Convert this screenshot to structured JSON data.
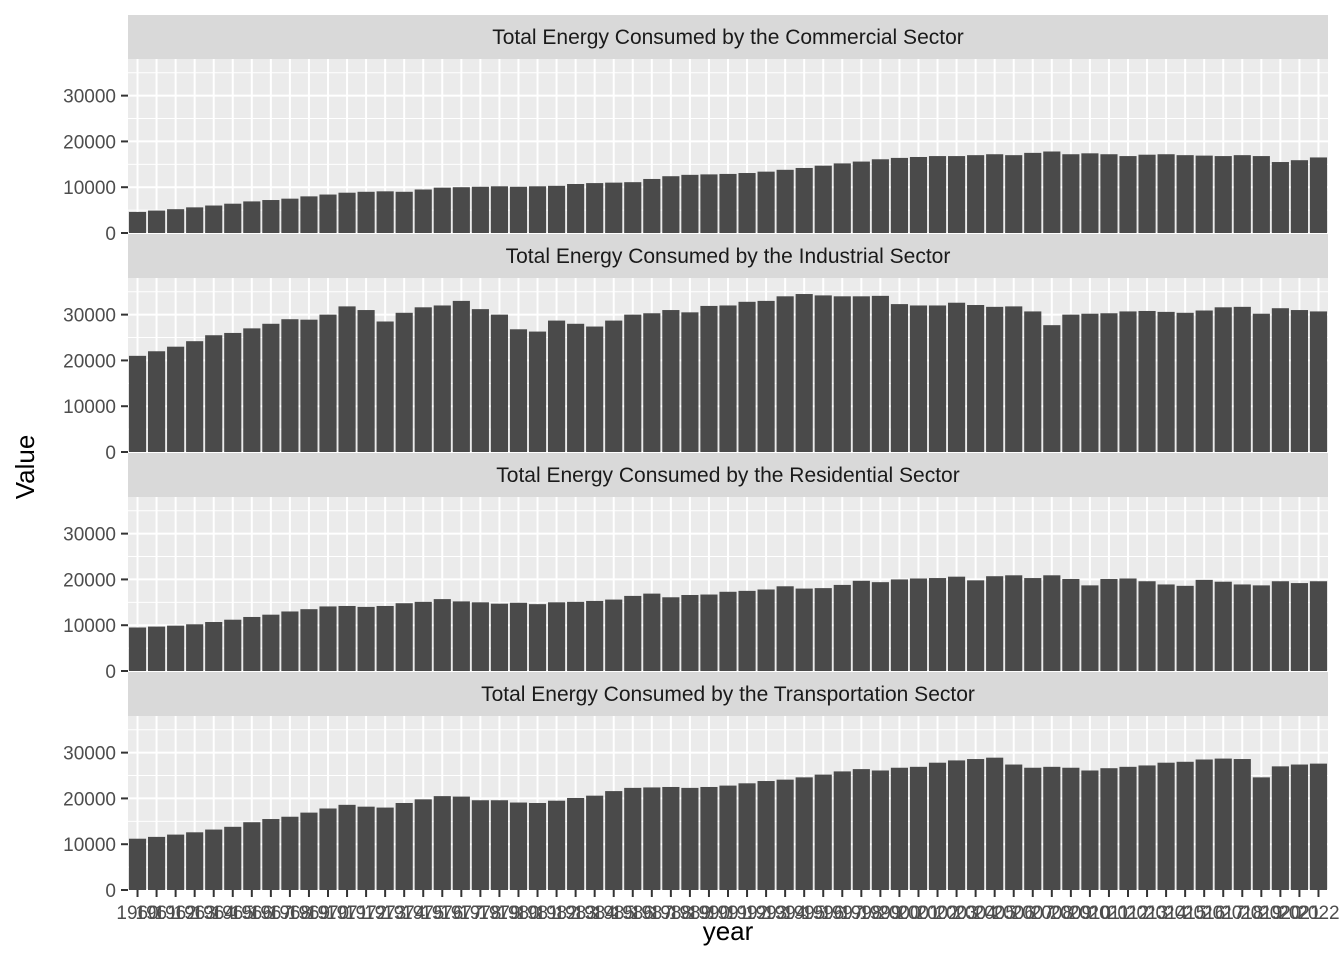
{
  "colors": {
    "panel_bg": "#EBEBEB",
    "strip_bg": "#D9D9D9",
    "bar_fill": "#4A4A4A",
    "grid": "#FFFFFF",
    "tick": "#333333"
  },
  "chart_data": {
    "type": "bar",
    "xlabel": "year",
    "ylabel": "Value",
    "ylim": [
      0,
      38000
    ],
    "yticks": [
      0,
      10000,
      20000,
      30000
    ],
    "grid": true,
    "x": [
      1960,
      1961,
      1962,
      1963,
      1964,
      1965,
      1966,
      1967,
      1968,
      1969,
      1970,
      1971,
      1972,
      1973,
      1974,
      1975,
      1976,
      1977,
      1978,
      1979,
      1980,
      1981,
      1982,
      1983,
      1984,
      1985,
      1986,
      1987,
      1988,
      1989,
      1990,
      1991,
      1992,
      1993,
      1994,
      1995,
      1996,
      1997,
      1998,
      1999,
      2000,
      2001,
      2002,
      2003,
      2004,
      2005,
      2006,
      2007,
      2008,
      2009,
      2010,
      2011,
      2012,
      2013,
      2014,
      2015,
      2016,
      2017,
      2018,
      2019,
      2020,
      2021,
      2022
    ],
    "x_tick_labels": [
      "1960",
      "1961",
      "1962",
      "1963",
      "1964",
      "1965",
      "1966",
      "1967",
      "1968",
      "1969",
      "1970",
      "1971",
      "1972",
      "1973",
      "1974",
      "1975",
      "1976",
      "1977",
      "1978",
      "1979",
      "1980",
      "1981",
      "1982",
      "1983",
      "1984",
      "1985",
      "1986",
      "1987",
      "1988",
      "1989",
      "1990",
      "1991",
      "1992",
      "1993",
      "1994",
      "1995",
      "1996",
      "1997",
      "1998",
      "1999",
      "2000",
      "2001",
      "2002",
      "2003",
      "2004",
      "2005",
      "2006",
      "2007",
      "2008",
      "2009",
      "2010",
      "2011",
      "2012",
      "2013",
      "2014",
      "2015",
      "2016",
      "2017",
      "2018",
      "2019",
      "2020",
      "2021",
      "2022"
    ],
    "panels": [
      {
        "title": "Total Energy Consumed by the Commercial Sector",
        "values": [
          4600,
          4900,
          5200,
          5600,
          6000,
          6400,
          6900,
          7200,
          7500,
          8000,
          8400,
          8800,
          9000,
          9100,
          9000,
          9500,
          9900,
          10000,
          10100,
          10200,
          10100,
          10200,
          10300,
          10700,
          10900,
          11000,
          11100,
          11800,
          12400,
          12700,
          12800,
          12900,
          13100,
          13400,
          13800,
          14200,
          14700,
          15200,
          15600,
          16100,
          16400,
          16600,
          16800,
          16800,
          17000,
          17200,
          17000,
          17500,
          17800,
          17200,
          17400,
          17200,
          16800,
          17100,
          17200,
          17000,
          16900,
          16800,
          17000,
          16800,
          15500,
          15900,
          16500
        ]
      },
      {
        "title": "Total Energy Consumed by the Industrial Sector",
        "values": [
          21000,
          22000,
          23000,
          24200,
          25500,
          26000,
          27000,
          28000,
          29000,
          28900,
          30000,
          31800,
          31000,
          28500,
          30400,
          31600,
          32000,
          33000,
          31200,
          30000,
          26800,
          26300,
          28700,
          28000,
          27400,
          28700,
          30000,
          30300,
          31000,
          30500,
          31900,
          32000,
          32800,
          33000,
          34000,
          34500,
          34200,
          34000,
          34000,
          34100,
          32300,
          32000,
          32000,
          32600,
          32100,
          31700,
          31800,
          30700,
          27700,
          30000,
          30200,
          30300,
          30700,
          30800,
          30600,
          30400,
          30900,
          31600,
          31700,
          30200,
          31400,
          31000,
          30700
        ]
      },
      {
        "title": "Total Energy Consumed by the Residential Sector",
        "values": [
          9500,
          9700,
          9900,
          10200,
          10700,
          11200,
          11800,
          12300,
          13000,
          13500,
          14100,
          14200,
          14000,
          14200,
          14800,
          15100,
          15700,
          15200,
          15000,
          14700,
          14900,
          14600,
          15000,
          15100,
          15300,
          15600,
          16400,
          16900,
          16100,
          16600,
          16700,
          17300,
          17500,
          17800,
          18500,
          18000,
          18100,
          18800,
          19700,
          19400,
          20000,
          20200,
          20300,
          20600,
          19800,
          20700,
          20900,
          20300,
          20900,
          20100,
          18700,
          20100,
          20200,
          19600,
          18900,
          18600,
          19900,
          19500,
          18900,
          18700,
          19600,
          19200,
          19600
        ]
      },
      {
        "title": "Total Energy Consumed by the Transportation Sector",
        "values": [
          11200,
          11600,
          12100,
          12600,
          13200,
          13800,
          14800,
          15500,
          16000,
          16900,
          17800,
          18600,
          18200,
          18000,
          19000,
          19800,
          20500,
          20400,
          19600,
          19600,
          19100,
          19000,
          19500,
          20100,
          20600,
          21600,
          22300,
          22400,
          22500,
          22300,
          22500,
          22800,
          23300,
          23800,
          24100,
          24600,
          25200,
          25900,
          26400,
          26100,
          26700,
          26900,
          27800,
          28300,
          28600,
          28900,
          27400,
          26700,
          26900,
          26700,
          26100,
          26600,
          26900,
          27200,
          27800,
          28000,
          28500,
          28700,
          28600,
          24600,
          27000,
          27400,
          27600
        ]
      }
    ]
  }
}
